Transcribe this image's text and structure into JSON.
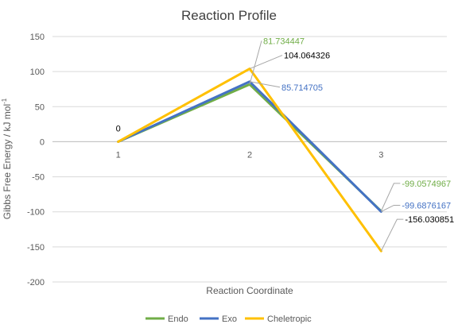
{
  "chart_data": {
    "type": "line",
    "title": "Reaction Profile",
    "xlabel": "Reaction Coordinate",
    "ylabel": "Gibbs Free Energy / kJ mol",
    "ylabel_sup": "-1",
    "categories": [
      "1",
      "2",
      "3"
    ],
    "ylim": [
      -200,
      150
    ],
    "yticks": [
      150,
      100,
      50,
      0,
      -50,
      -100,
      -150,
      -200
    ],
    "ytick_labels": [
      "150",
      "100",
      "50",
      "0",
      "-50",
      "-100",
      "-150",
      "-200"
    ],
    "grid": "horizontal",
    "legend_position": "bottom",
    "series": [
      {
        "name": "Endo",
        "color": "#70ad47",
        "values": [
          0,
          81.734447,
          -99.0574967
        ],
        "labels": [
          "0",
          "81.734447",
          "-99.0574967"
        ]
      },
      {
        "name": "Exo",
        "color": "#4472c4",
        "values": [
          0,
          85.714705,
          -99.6876167
        ],
        "labels": [
          "0",
          "85.714705",
          "-99.6876167"
        ]
      },
      {
        "name": "Cheletropic",
        "color": "#ffc000",
        "values": [
          0,
          104.064326,
          -156.030851
        ],
        "labels": [
          "0",
          "104.064326",
          "-156.030851"
        ]
      }
    ]
  }
}
